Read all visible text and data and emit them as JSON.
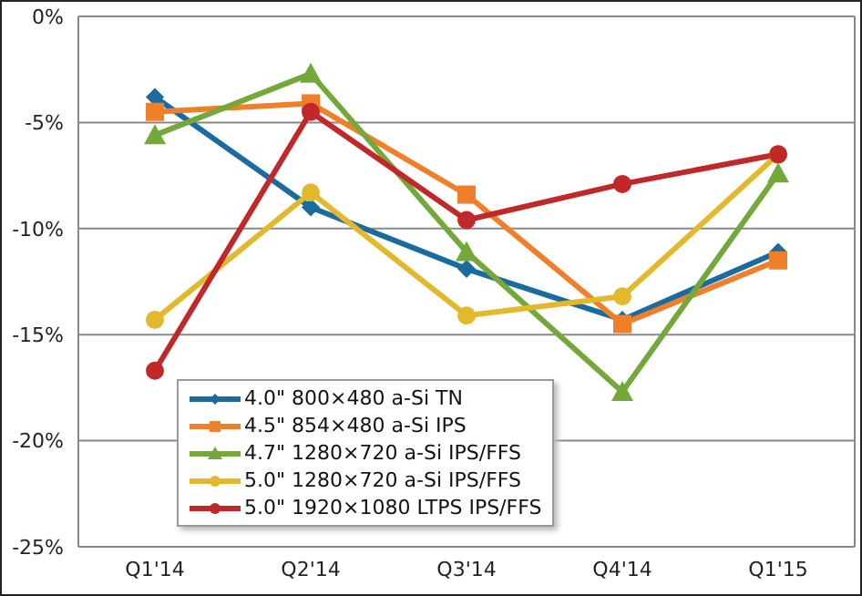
{
  "chart_data": {
    "type": "line",
    "categories": [
      "Q1'14",
      "Q2'14",
      "Q3'14",
      "Q4'14",
      "Q1'15"
    ],
    "series": [
      {
        "name": "4.0\" 800×480 a-Si TN",
        "color": "#1b6aa0",
        "marker": "diamond",
        "values": [
          -3.8,
          -9.0,
          -11.9,
          -14.3,
          -11.1
        ]
      },
      {
        "name": "4.5\" 854×480 a-Si IPS",
        "color": "#f07f2a",
        "marker": "square",
        "values": [
          -4.5,
          -4.1,
          -8.4,
          -14.5,
          -11.5
        ]
      },
      {
        "name": "4.7\" 1280×720 a-Si IPS/FFS",
        "color": "#74a83b",
        "marker": "triangle",
        "values": [
          -5.6,
          -2.7,
          -11.1,
          -17.7,
          -7.4
        ]
      },
      {
        "name": "5.0\" 1280×720 a-Si IPS/FFS",
        "color": "#e2b92c",
        "marker": "circle",
        "values": [
          -14.3,
          -8.3,
          -14.1,
          -13.2,
          -6.5
        ]
      },
      {
        "name": "5.0\" 1920×1080 LTPS IPS/FFS",
        "color": "#c0282a",
        "marker": "circle",
        "values": [
          -16.7,
          -4.5,
          -9.6,
          -7.9,
          -6.5
        ]
      }
    ],
    "ylim": [
      -25,
      0
    ],
    "yticks": [
      {
        "value": -25,
        "label": "-25%"
      },
      {
        "value": -20,
        "label": "-20%"
      },
      {
        "value": -15,
        "label": "-15%"
      },
      {
        "value": -10,
        "label": "-10%"
      },
      {
        "value": -5,
        "label": "-5%"
      },
      {
        "value": 0,
        "label": "0%"
      }
    ],
    "grid": "y",
    "legend": "bottom left",
    "line_style": "solid"
  }
}
